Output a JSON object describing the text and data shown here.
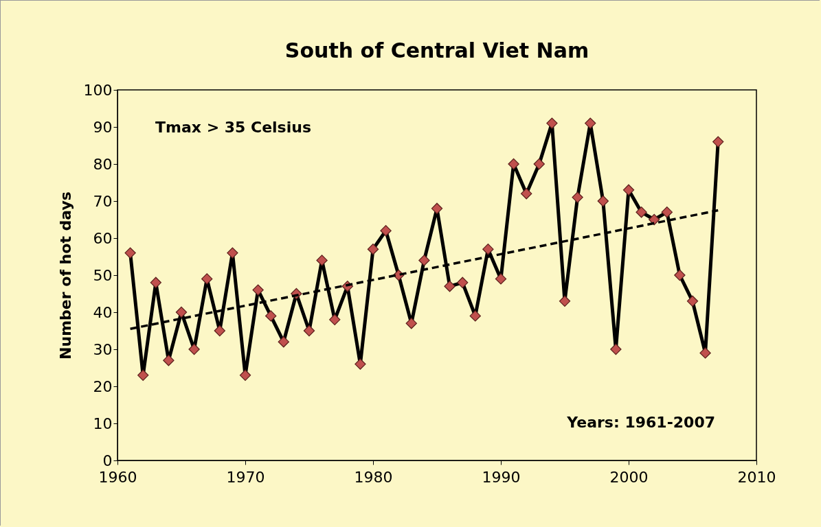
{
  "chart_data": {
    "type": "line",
    "title": "South of Central Viet Nam",
    "ylabel": "Number of hot days",
    "annotations": [
      "Tmax > 35 Celsius",
      "Years: 1961-2007"
    ],
    "x": [
      1961,
      1962,
      1963,
      1964,
      1965,
      1966,
      1967,
      1968,
      1969,
      1970,
      1971,
      1972,
      1973,
      1974,
      1975,
      1976,
      1977,
      1978,
      1979,
      1980,
      1981,
      1982,
      1983,
      1984,
      1985,
      1986,
      1987,
      1988,
      1989,
      1990,
      1991,
      1992,
      1993,
      1994,
      1995,
      1996,
      1997,
      1998,
      1999,
      2000,
      2001,
      2002,
      2003,
      2004,
      2005,
      2006,
      2007
    ],
    "series": [
      {
        "color": "#000000",
        "marker": "diamond",
        "line_style": "solid",
        "values": [
          56,
          23,
          48,
          27,
          40,
          30,
          49,
          35,
          56,
          23,
          46,
          39,
          32,
          45,
          35,
          54,
          38,
          47,
          26,
          57,
          62,
          50,
          37,
          54,
          68,
          47,
          48,
          39,
          57,
          49,
          80,
          72,
          80,
          91,
          43,
          71,
          91,
          70,
          30,
          73,
          67,
          65,
          67,
          50,
          43,
          29,
          86
        ]
      },
      {
        "type": "line",
        "color": "#000000",
        "marker": "none",
        "line_style": "dashed",
        "x": [
          1961,
          2007
        ],
        "values": [
          35.5,
          67.5
        ]
      }
    ],
    "xlim": [
      1960,
      2010
    ],
    "xticks": [
      1960,
      1970,
      1980,
      1990,
      2000,
      2010
    ],
    "ylim": [
      0,
      100
    ],
    "yticks": [
      0,
      10,
      20,
      30,
      40,
      50,
      60,
      70,
      80,
      90,
      100
    ],
    "grid": false
  }
}
